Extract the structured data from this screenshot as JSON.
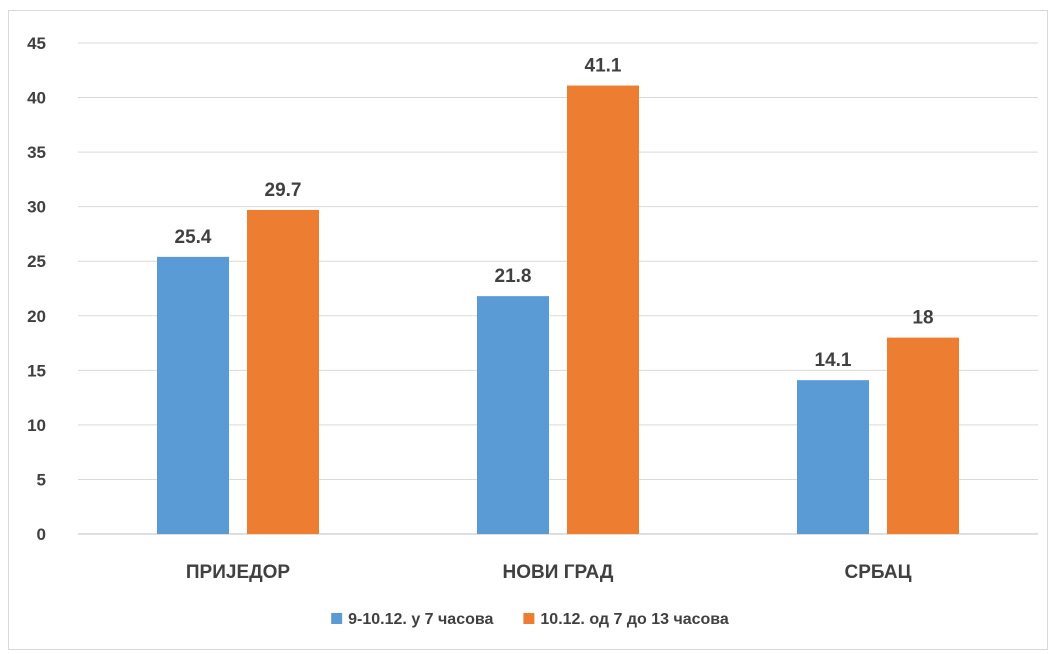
{
  "chart_data": {
    "type": "bar",
    "title": "",
    "xlabel": "",
    "ylabel": "",
    "categories": [
      "ПРИЈЕДОР",
      "НОВИ ГРАД",
      "СРБАЦ"
    ],
    "series": [
      {
        "name": "9-10.12. у 7 часова",
        "color": "#5b9bd5",
        "values": [
          25.4,
          21.8,
          14.1
        ]
      },
      {
        "name": "10.12. од 7 до 13 часова",
        "color": "#ed7d31",
        "values": [
          29.7,
          41.1,
          18
        ]
      }
    ],
    "ylim": [
      0,
      45
    ],
    "yticks": [
      0,
      5,
      10,
      15,
      20,
      25,
      30,
      35,
      40,
      45
    ],
    "grid": true,
    "legend_position": "bottom",
    "data_labels": true
  }
}
